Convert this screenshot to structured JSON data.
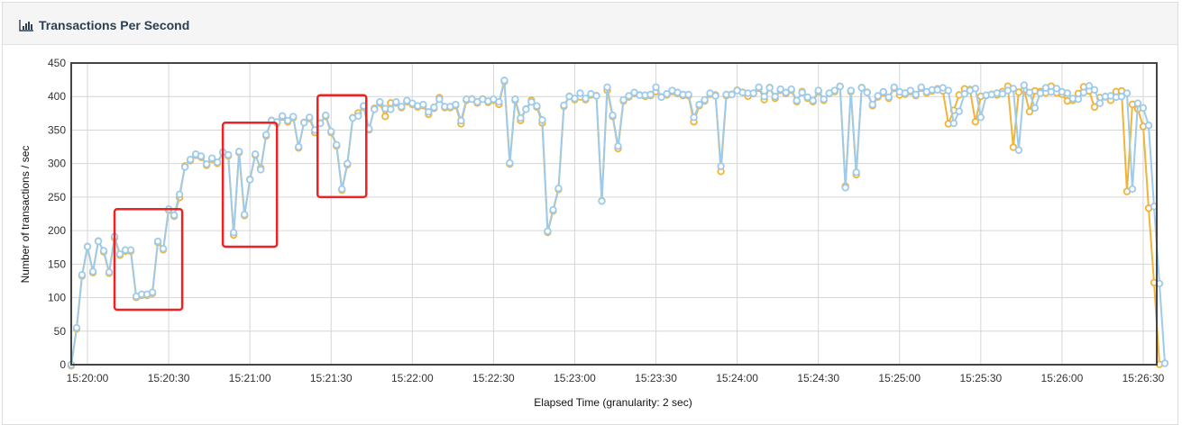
{
  "panel": {
    "title": "Transactions Per Second",
    "icon": "bar-chart-icon"
  },
  "chart_data": {
    "type": "line",
    "title": "",
    "xlabel": "Elapsed Time (granularity: 2 sec)",
    "ylabel": "Number of transactions / sec",
    "x_start": "15:19:54",
    "x_step_seconds": 2,
    "xlim": [
      "15:19:54",
      "15:26:35"
    ],
    "ylim": [
      0,
      450
    ],
    "yticks": [
      0,
      50,
      100,
      150,
      200,
      250,
      300,
      350,
      400,
      450
    ],
    "xticks": [
      "15:20:00",
      "15:20:30",
      "15:21:00",
      "15:21:30",
      "15:22:00",
      "15:22:30",
      "15:23:00",
      "15:23:30",
      "15:24:00",
      "15:24:30",
      "15:25:00",
      "15:25:30",
      "15:26:00",
      "15:26:30"
    ],
    "grid": true,
    "legend": "none",
    "series": [
      {
        "color": "#f0b43c",
        "values": [
          0,
          55,
          134,
          178,
          139,
          186,
          170,
          138,
          191,
          165,
          171,
          171,
          102,
          105,
          105,
          108,
          184,
          173,
          232,
          223,
          251,
          298,
          306,
          314,
          311,
          299,
          308,
          302,
          318,
          313,
          195,
          318,
          224,
          278,
          314,
          295,
          343,
          366,
          362,
          371,
          364,
          370,
          325,
          363,
          369,
          348,
          362,
          372,
          348,
          328,
          262,
          300,
          370,
          377,
          386,
          352,
          384,
          392,
          372,
          392,
          392,
          385,
          394,
          390,
          386,
          388,
          375,
          384,
          400,
          385,
          385,
          388,
          361,
          396,
          398,
          392,
          398,
          393,
          396,
          390,
          424,
          301,
          396,
          366,
          383,
          396,
          386,
          362,
          199,
          231,
          263,
          387,
          402,
          397,
          401,
          397,
          404,
          403,
          246,
          411,
          372,
          324,
          395,
          401,
          406,
          404,
          402,
          403,
          409,
          401,
          404,
          409,
          406,
          403,
          403,
          364,
          388,
          395,
          405,
          404,
          290,
          403,
          405,
          411,
          408,
          402,
          406,
          414,
          397,
          415,
          399,
          411,
          406,
          411,
          394,
          409,
          399,
          394,
          409,
          396,
          406,
          409,
          417,
          268,
          409,
          285,
          415,
          408,
          388,
          401,
          407,
          399,
          414,
          404,
          405,
          409,
          403,
          414,
          407,
          410,
          413,
          410,
          361,
          381,
          404,
          413,
          412,
          364,
          402,
          403,
          405,
          404,
          409,
          417,
          326,
          408,
          412,
          379,
          410,
          409,
          407,
          417,
          407,
          405,
          395,
          396,
          406,
          416,
          410,
          386,
          400,
          401,
          396,
          409,
          410,
          260,
          390,
          383,
          357,
          235,
          124,
          2
        ]
      },
      {
        "color": "#9fcbea",
        "values": [
          0,
          55,
          134,
          176,
          139,
          184,
          170,
          138,
          191,
          165,
          171,
          171,
          102,
          105,
          105,
          108,
          184,
          173,
          232,
          223,
          254,
          295,
          306,
          314,
          311,
          299,
          308,
          302,
          317,
          313,
          197,
          318,
          224,
          276,
          314,
          291,
          343,
          364,
          362,
          371,
          364,
          370,
          325,
          361,
          369,
          350,
          360,
          372,
          348,
          328,
          262,
          300,
          368,
          371,
          386,
          352,
          381,
          392,
          382,
          381,
          392,
          385,
          394,
          390,
          386,
          388,
          377,
          384,
          396,
          385,
          385,
          388,
          364,
          396,
          396,
          392,
          396,
          393,
          396,
          392,
          424,
          301,
          396,
          368,
          381,
          392,
          386,
          365,
          199,
          231,
          263,
          387,
          400,
          397,
          405,
          397,
          404,
          401,
          244,
          414,
          372,
          326,
          395,
          401,
          406,
          402,
          402,
          403,
          414,
          399,
          404,
          409,
          406,
          403,
          403,
          369,
          388,
          395,
          405,
          401,
          296,
          403,
          403,
          409,
          406,
          405,
          405,
          414,
          400,
          413,
          400,
          411,
          406,
          411,
          394,
          406,
          399,
          394,
          409,
          396,
          405,
          409,
          415,
          264,
          409,
          287,
          413,
          406,
          388,
          401,
          407,
          399,
          414,
          407,
          405,
          409,
          403,
          414,
          407,
          410,
          410,
          413,
          409,
          360,
          378,
          404,
          409,
          412,
          369,
          402,
          403,
          405,
          404,
          409,
          412,
          320,
          417,
          406,
          383,
          405,
          413,
          407,
          412,
          407,
          405,
          397,
          396,
          406,
          416,
          410,
          390,
          400,
          401,
          399,
          400,
          405,
          262,
          390,
          383,
          357,
          236,
          121,
          2
        ]
      }
    ],
    "annotations": [
      {
        "type": "highlight-box",
        "color": "#ee2222",
        "x_range": [
          "15:20:10",
          "15:20:35"
        ],
        "y_range": [
          82,
          232
        ]
      },
      {
        "type": "highlight-box",
        "color": "#ee2222",
        "x_range": [
          "15:20:50",
          "15:21:10"
        ],
        "y_range": [
          176,
          361
        ]
      },
      {
        "type": "highlight-box",
        "color": "#ee2222",
        "x_range": [
          "15:21:25",
          "15:21:43"
        ],
        "y_range": [
          250,
          402
        ]
      }
    ]
  }
}
